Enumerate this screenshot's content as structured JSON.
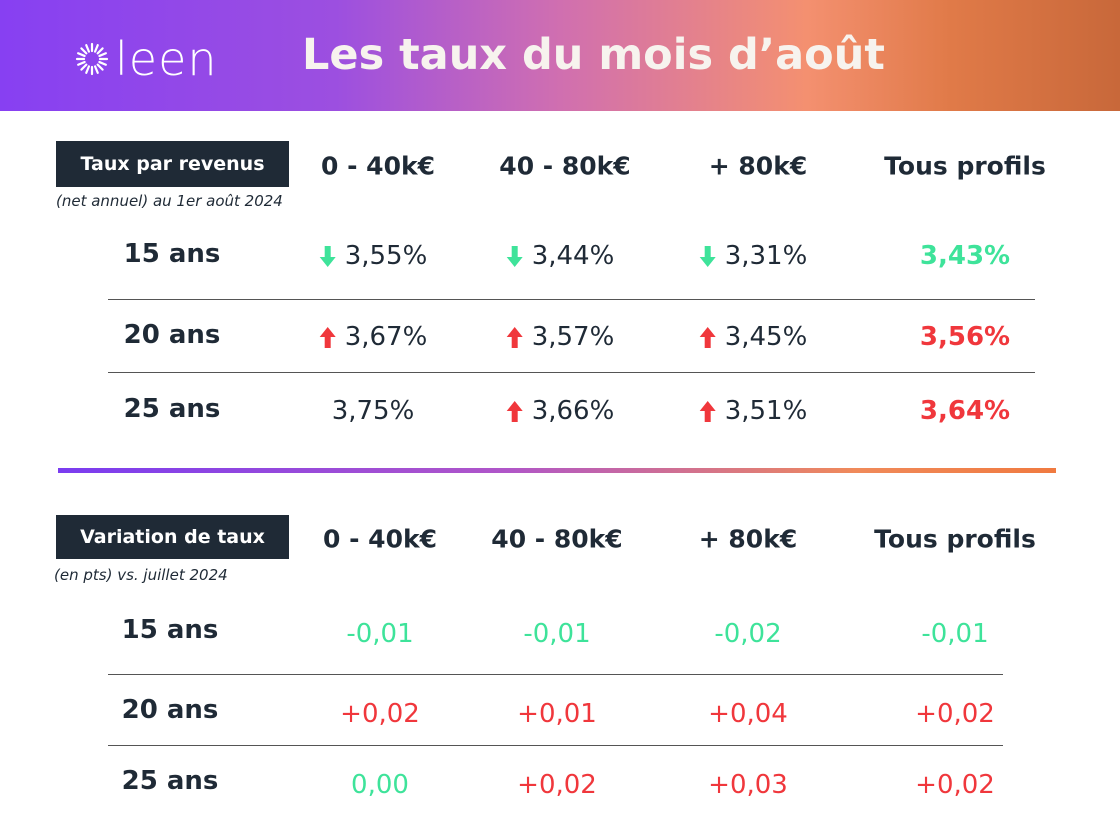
{
  "header": {
    "brand": "leen",
    "title": "Les taux du mois d’août"
  },
  "colors": {
    "down": "#3ee39a",
    "up": "#f0373c",
    "dark": "#1f2a36"
  },
  "rates": {
    "tag": "Taux par revenus",
    "subtitle": "(net annuel) au 1er août 2024",
    "columns": [
      "0 - 40k€",
      "40 - 80k€",
      "+ 80k€",
      "Tous profils"
    ],
    "rows": [
      {
        "label": "15 ans",
        "values": [
          {
            "v": "3,55%",
            "icon": "arrow-down"
          },
          {
            "v": "3,44%",
            "icon": "arrow-down"
          },
          {
            "v": "3,31%",
            "icon": "arrow-down"
          },
          {
            "v": "3,43%",
            "trend": "down"
          }
        ]
      },
      {
        "label": "20 ans",
        "values": [
          {
            "v": "3,67%",
            "icon": "arrow-up"
          },
          {
            "v": "3,57%",
            "icon": "arrow-up"
          },
          {
            "v": "3,45%",
            "icon": "arrow-up"
          },
          {
            "v": "3,56%",
            "trend": "up"
          }
        ]
      },
      {
        "label": "25 ans",
        "values": [
          {
            "v": "3,75%",
            "icon": ""
          },
          {
            "v": "3,66%",
            "icon": "arrow-up"
          },
          {
            "v": "3,51%",
            "icon": "arrow-up"
          },
          {
            "v": "3,64%",
            "trend": "up"
          }
        ]
      }
    ]
  },
  "variation": {
    "tag": "Variation de taux",
    "subtitle": "(en pts) vs. juillet 2024",
    "columns": [
      "0 - 40k€",
      "40 - 80k€",
      "+ 80k€",
      "Tous profils"
    ],
    "rows": [
      {
        "label": "15 ans",
        "values": [
          "-0,01",
          "-0,01",
          "-0,02",
          "-0,01"
        ],
        "trend": [
          "down",
          "down",
          "down",
          "down"
        ]
      },
      {
        "label": "20 ans",
        "values": [
          "+0,02",
          "+0,01",
          "+0,04",
          "+0,02"
        ],
        "trend": [
          "up",
          "up",
          "up",
          "up"
        ]
      },
      {
        "label": "25 ans",
        "values": [
          "0,00",
          "+0,02",
          "+0,03",
          "+0,02"
        ],
        "trend": [
          "down",
          "up",
          "up",
          "up"
        ]
      }
    ]
  }
}
